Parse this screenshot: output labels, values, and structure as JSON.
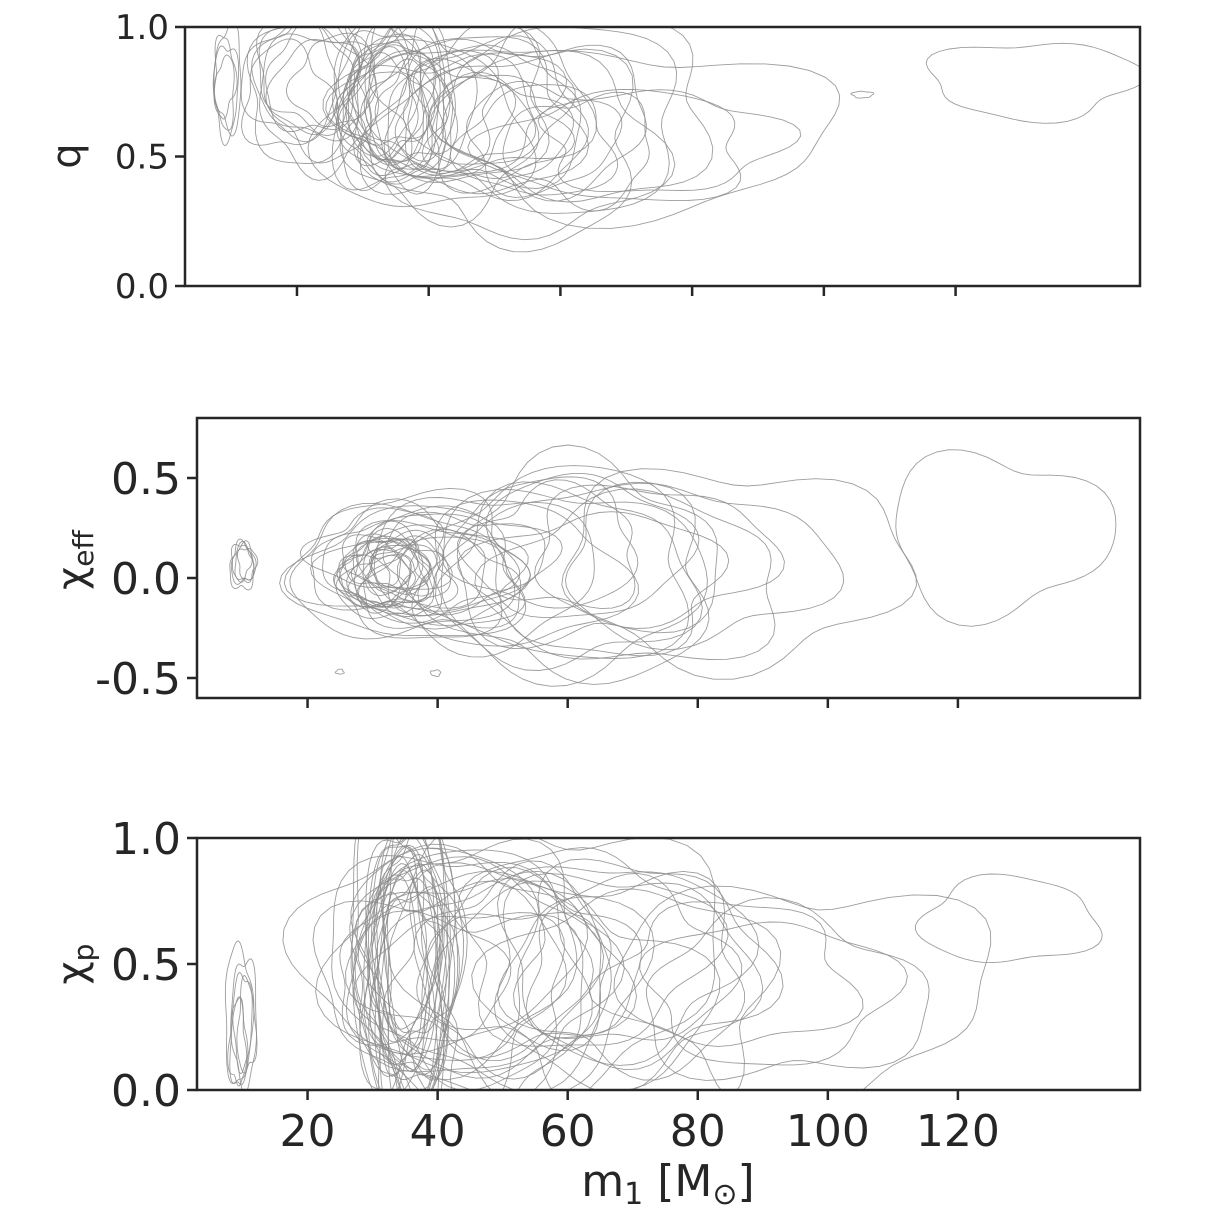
{
  "chart_data": [
    {
      "type": "contour",
      "panel": "top",
      "ylabel": "q",
      "xlim": [
        3,
        148
      ],
      "ylim": [
        0,
        1
      ],
      "xticks": [
        20,
        40,
        60,
        80,
        100,
        120
      ],
      "xtick_labels_shown": false,
      "yticks": [
        0.0,
        0.5,
        1.0
      ],
      "ytick_labels": [
        "0.0",
        "0.5",
        "1.0"
      ],
      "contour_color": "#8c8c8c",
      "regions": [
        {
          "cx": 9,
          "cy": 0.78,
          "rx": 2,
          "ry": 0.2,
          "n": 4
        },
        {
          "cx": 22,
          "cy": 0.76,
          "rx": 9,
          "ry": 0.27,
          "n": 10
        },
        {
          "cx": 35,
          "cy": 0.7,
          "rx": 8,
          "ry": 0.3,
          "n": 16
        },
        {
          "cx": 45,
          "cy": 0.65,
          "rx": 16,
          "ry": 0.32,
          "n": 14
        },
        {
          "cx": 60,
          "cy": 0.62,
          "rx": 18,
          "ry": 0.33,
          "n": 8
        },
        {
          "cx": 80,
          "cy": 0.6,
          "rx": 28,
          "ry": 0.3,
          "n": 3
        },
        {
          "cx": 132,
          "cy": 0.82,
          "rx": 16,
          "ry": 0.15,
          "n": 1
        },
        {
          "cx": 106,
          "cy": 0.74,
          "rx": 2.5,
          "ry": 0.02,
          "n": 1
        }
      ]
    },
    {
      "type": "contour",
      "panel": "middle",
      "ylabel": "χeff",
      "xlim": [
        3,
        148
      ],
      "ylim": [
        -0.6,
        0.8
      ],
      "xticks": [
        20,
        40,
        60,
        80,
        100,
        120
      ],
      "xtick_labels_shown": false,
      "yticks": [
        -0.5,
        0.0,
        0.5
      ],
      "ytick_labels": [
        "-0.5",
        "0.0",
        "0.5"
      ],
      "contour_color": "#8c8c8c",
      "regions": [
        {
          "cx": 10,
          "cy": 0.05,
          "rx": 2,
          "ry": 0.12,
          "n": 5
        },
        {
          "cx": 33,
          "cy": 0.03,
          "rx": 7,
          "ry": 0.18,
          "n": 18
        },
        {
          "cx": 38,
          "cy": 0.05,
          "rx": 16,
          "ry": 0.3,
          "n": 12
        },
        {
          "cx": 55,
          "cy": 0.05,
          "rx": 20,
          "ry": 0.45,
          "n": 10
        },
        {
          "cx": 75,
          "cy": 0.05,
          "rx": 30,
          "ry": 0.55,
          "n": 5
        },
        {
          "cx": 132,
          "cy": 0.2,
          "rx": 17,
          "ry": 0.4,
          "n": 1
        },
        {
          "cx": 25,
          "cy": -0.47,
          "rx": 1,
          "ry": 0.02,
          "n": 1
        },
        {
          "cx": 40,
          "cy": -0.47,
          "rx": 1,
          "ry": 0.02,
          "n": 1
        }
      ]
    },
    {
      "type": "contour",
      "panel": "bottom",
      "ylabel": "χp",
      "xlabel": "m1 [M⊙]",
      "xlim": [
        3,
        148
      ],
      "ylim": [
        0,
        1
      ],
      "xticks": [
        20,
        40,
        60,
        80,
        100,
        120
      ],
      "xtick_labels": [
        "20",
        "40",
        "60",
        "80",
        "100",
        "120"
      ],
      "yticks": [
        0.0,
        0.5,
        1.0
      ],
      "ytick_labels": [
        "0.0",
        "0.5",
        "1.0"
      ],
      "contour_color": "#8c8c8c",
      "regions": [
        {
          "cx": 10,
          "cy": 0.25,
          "rx": 2,
          "ry": 0.26,
          "n": 6
        },
        {
          "cx": 35,
          "cy": 0.5,
          "rx": 6,
          "ry": 0.5,
          "n": 22
        },
        {
          "cx": 45,
          "cy": 0.45,
          "rx": 20,
          "ry": 0.45,
          "n": 16
        },
        {
          "cx": 62,
          "cy": 0.48,
          "rx": 24,
          "ry": 0.5,
          "n": 10
        },
        {
          "cx": 90,
          "cy": 0.5,
          "rx": 30,
          "ry": 0.45,
          "n": 4
        },
        {
          "cx": 132,
          "cy": 0.7,
          "rx": 16,
          "ry": 0.2,
          "n": 1
        }
      ]
    }
  ]
}
